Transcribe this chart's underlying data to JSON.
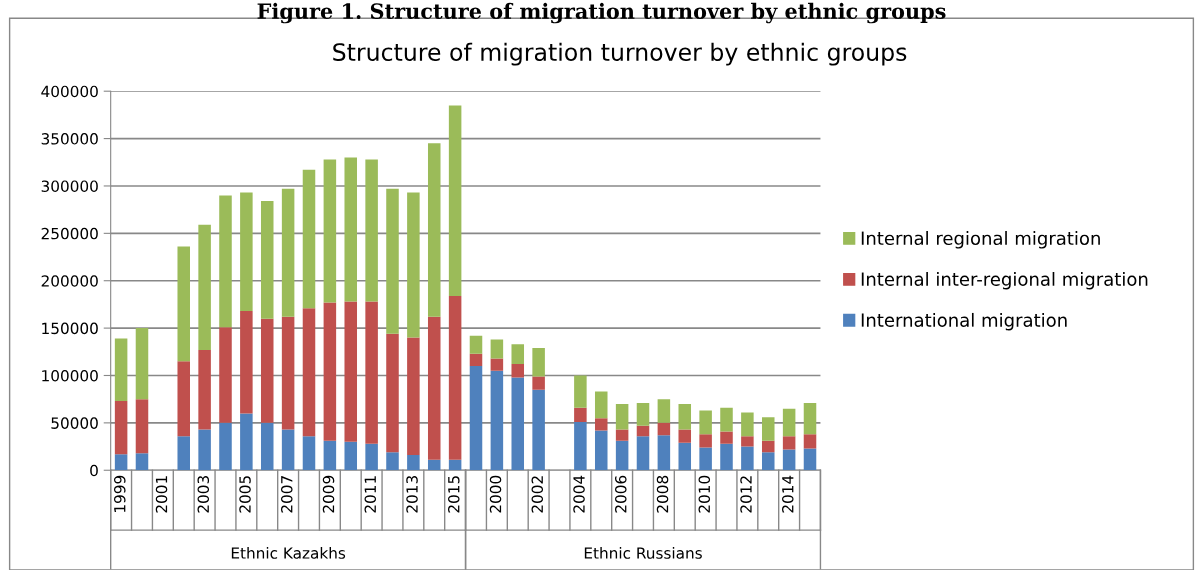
{
  "chart_data": {
    "type": "bar",
    "stacked": true,
    "title": "Figure 1. Structure of migration turnover by ethnic groups",
    "subtitle": "Structure of migration turnover by ethnic groups",
    "categories": [
      "1999",
      null,
      "2001",
      null,
      "2003",
      null,
      "2005",
      null,
      "2007",
      null,
      "2009",
      null,
      "2011",
      null,
      "2013",
      null,
      "2015",
      null,
      "2000",
      null,
      "2002",
      null,
      "2004",
      null,
      "2006",
      null,
      "2008",
      null,
      "2010",
      null,
      "2012",
      null,
      "2014",
      null
    ],
    "series": [
      {
        "name": "International migration",
        "color": "#4f81bd",
        "values": [
          17000,
          18000,
          null,
          36000,
          43000,
          50000,
          60000,
          50000,
          43000,
          36000,
          31000,
          30000,
          28000,
          19000,
          16000,
          11000,
          11000,
          110000,
          105000,
          98000,
          85000,
          null,
          51000,
          42000,
          31000,
          36000,
          37000,
          29000,
          24000,
          28000,
          25000,
          19000,
          22000,
          23000
        ]
      },
      {
        "name": "Internal inter-regional migration",
        "color": "#c0504d",
        "values": [
          56000,
          57000,
          null,
          79000,
          84000,
          101000,
          108000,
          110000,
          119000,
          135000,
          146000,
          148000,
          150000,
          125000,
          124000,
          151000,
          173000,
          13000,
          13000,
          14000,
          14000,
          null,
          15000,
          13000,
          12000,
          11000,
          13000,
          14000,
          14000,
          13000,
          11000,
          12000,
          14000,
          15000
        ]
      },
      {
        "name": "Internal regional migration",
        "color": "#9bbb59",
        "values": [
          66000,
          75000,
          null,
          121000,
          132000,
          139000,
          125000,
          124000,
          135000,
          146000,
          151000,
          152000,
          150000,
          153000,
          153000,
          183000,
          201000,
          19000,
          20000,
          21000,
          30000,
          null,
          34000,
          28000,
          27000,
          24000,
          25000,
          27000,
          25000,
          25000,
          25000,
          25000,
          29000,
          33000
        ]
      }
    ],
    "annotations": [
      "Ethnic Kazakhs",
      "Ethnic Russians"
    ],
    "ylim": [
      0,
      400000
    ],
    "yticks": [
      0,
      50000,
      100000,
      150000,
      200000,
      250000,
      300000,
      350000,
      400000
    ],
    "grid": "y",
    "legend": "right"
  }
}
